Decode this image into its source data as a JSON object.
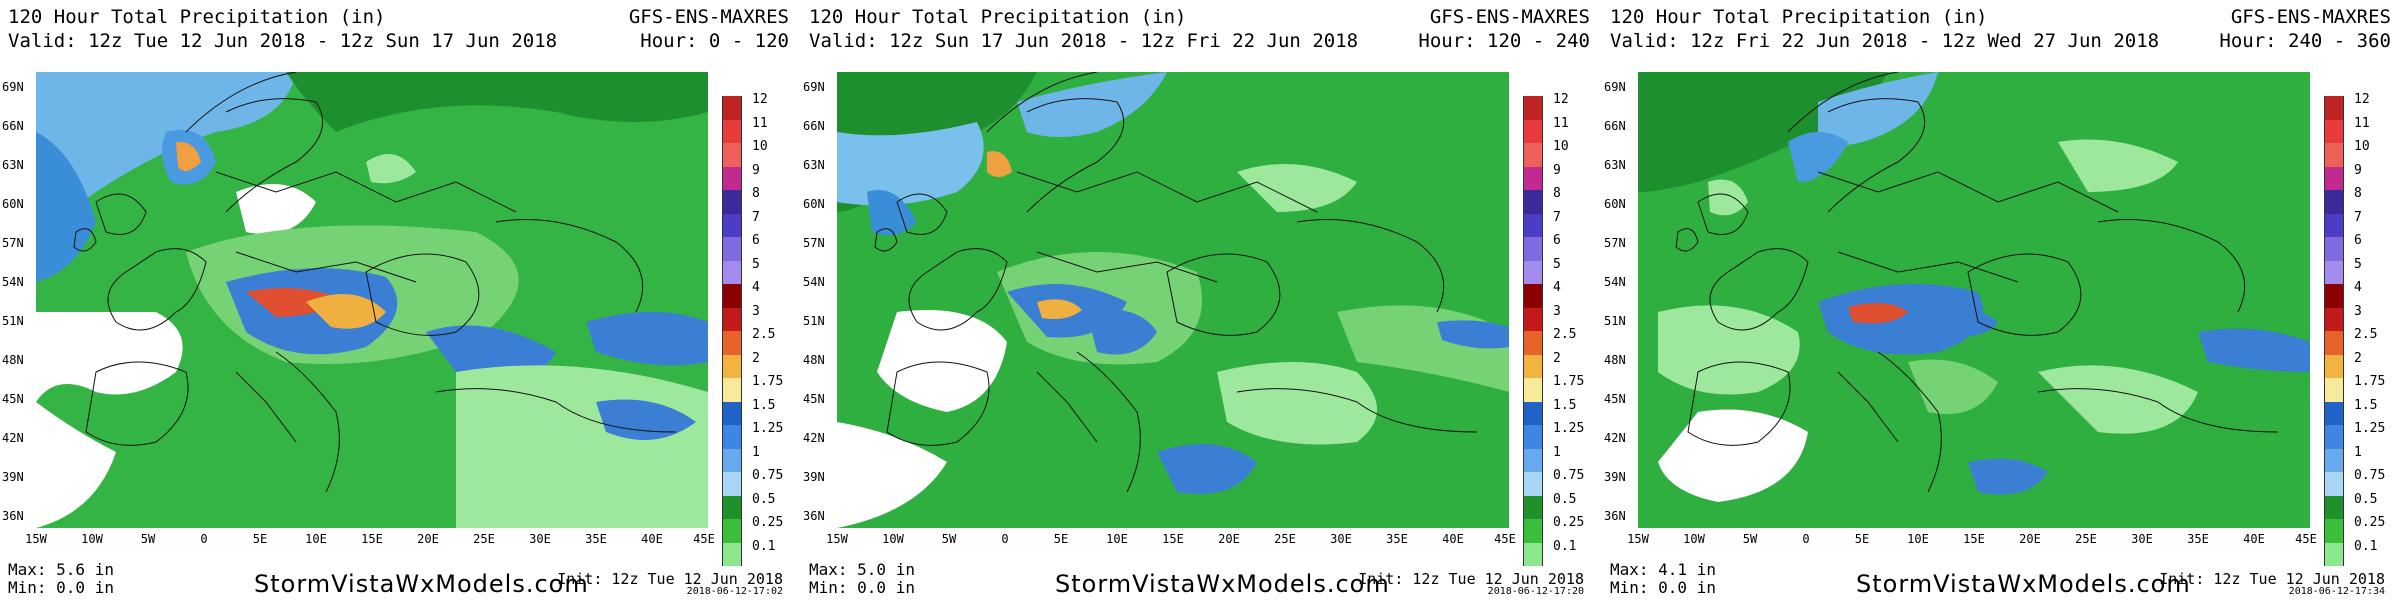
{
  "colorbar": {
    "labels": [
      "12",
      "11",
      "10",
      "9",
      "8",
      "7",
      "6",
      "5",
      "4",
      "3",
      "2.5",
      "2",
      "1.75",
      "1.5",
      "1.25",
      "1",
      "0.75",
      "0.5",
      "0.25",
      "0.1"
    ],
    "colors": [
      "#bf2424",
      "#e83a3a",
      "#f0605a",
      "#c12a8e",
      "#3b2a9a",
      "#4a3ec7",
      "#7f6ae0",
      "#a48bee",
      "#8b0000",
      "#c21a1a",
      "#e8632a",
      "#f2b340",
      "#f7ea9a",
      "#1f62c8",
      "#3f86e4",
      "#66a9ee",
      "#a9d6f5",
      "#20912a",
      "#3bbf3b",
      "#8de88d"
    ]
  },
  "lat_labels": [
    "69N",
    "66N",
    "63N",
    "60N",
    "57N",
    "54N",
    "51N",
    "48N",
    "45N",
    "42N",
    "39N",
    "36N"
  ],
  "lon_labels": [
    "15W",
    "10W",
    "5W",
    "0",
    "5E",
    "10E",
    "15E",
    "20E",
    "25E",
    "30E",
    "35E",
    "40E",
    "45E"
  ],
  "panels": [
    {
      "title": "120 Hour Total Precipitation (in)",
      "valid": "Valid: 12z Tue 12 Jun 2018 - 12z Sun 17 Jun 2018",
      "model": "GFS-ENS-MAXRES",
      "hour": "Hour: 0 - 120",
      "max": "Max: 5.6 in",
      "min": "Min: 0.0 in",
      "brand": "StormVistaWxModels.com",
      "init": "Init: 12z Tue 12 Jun 2018",
      "stamp": "2018-06-12-17:02"
    },
    {
      "title": "120 Hour Total Precipitation (in)",
      "valid": "Valid: 12z Sun 17 Jun 2018 - 12z Fri 22 Jun 2018",
      "model": "GFS-ENS-MAXRES",
      "hour": "Hour: 120 - 240",
      "max": "Max: 5.0 in",
      "min": "Min: 0.0 in",
      "brand": "StormVistaWxModels.com",
      "init": "Init: 12z Tue 12 Jun 2018",
      "stamp": "2018-06-12-17:20"
    },
    {
      "title": "120 Hour Total Precipitation (in)",
      "valid": "Valid: 12z Fri 22 Jun 2018 - 12z Wed 27 Jun 2018",
      "model": "GFS-ENS-MAXRES",
      "hour": "Hour: 240 - 360",
      "max": "Max: 4.1 in",
      "min": "Min: 0.0 in",
      "brand": "StormVistaWxModels.com",
      "init": "Init: 12z Tue 12 Jun 2018",
      "stamp": "2018-06-12-17:34"
    }
  ]
}
